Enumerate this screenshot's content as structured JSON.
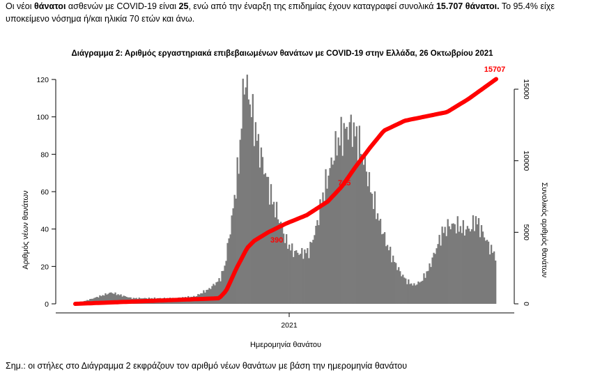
{
  "intro": {
    "p1": "Οι νέοι ",
    "b1": "θάνατοι",
    "p2": " ασθενών με COVID-19 είναι ",
    "b2": "25",
    "p3": ", ενώ από την έναρξη της επιδημίας έχουν καταγραφεί συνολικά ",
    "b3": "15.707 θάνατοι.",
    "p4": " Το 95.4% είχε υποκείμενο νόσημα ή/και ηλικία 70 ετών και άνω."
  },
  "note": "Σημ.: οι στήλες στο Διάγραμμα 2 εκφράζουν τον αριθμό νέων θανάτων με βάση την ημερομηνία θανάτου",
  "chart_data": {
    "type": "bar",
    "title": "Διάγραμμα 2: Αριθμός εργαστηριακά επιβεβαιωμένων θανάτων με COVID-19 στην Ελλάδα, 26 Οκτωβρίου 2021",
    "xlabel": "Ημερομηνία θανάτου",
    "ylabel": "Αριθμός νέων θανάτων",
    "y2label": "Συνολικός αριθμός θανάτων",
    "ylim": [
      0,
      125
    ],
    "y2lim": [
      0,
      15707
    ],
    "yticks": [
      0,
      20,
      40,
      60,
      80,
      100,
      120
    ],
    "y2ticks": [
      0,
      5000,
      10000,
      15000
    ],
    "y2ticklabels": [
      "0",
      "5000",
      "10000",
      "15000"
    ],
    "xticks": [
      "2021"
    ],
    "colors": {
      "bars": "#7a7a7a",
      "cumulative": "#ff0000"
    },
    "annotations": [
      "390",
      "715",
      "15707"
    ],
    "series": [
      {
        "type": "bar",
        "daily_profile_keypoints": [
          [
            0,
            0
          ],
          [
            25,
            3
          ],
          [
            50,
            6
          ],
          [
            80,
            3
          ],
          [
            110,
            3
          ],
          [
            140,
            3
          ],
          [
            170,
            4
          ],
          [
            190,
            8
          ],
          [
            205,
            13
          ],
          [
            212,
            20
          ],
          [
            222,
            45
          ],
          [
            232,
            75
          ],
          [
            240,
            121
          ],
          [
            246,
            112
          ],
          [
            252,
            100
          ],
          [
            260,
            85
          ],
          [
            270,
            70
          ],
          [
            280,
            55
          ],
          [
            290,
            45
          ],
          [
            300,
            33
          ],
          [
            310,
            28
          ],
          [
            320,
            27
          ],
          [
            332,
            28
          ],
          [
            342,
            40
          ],
          [
            352,
            58
          ],
          [
            362,
            72
          ],
          [
            372,
            86
          ],
          [
            382,
            92
          ],
          [
            392,
            95
          ],
          [
            402,
            88
          ],
          [
            412,
            75
          ],
          [
            422,
            58
          ],
          [
            432,
            45
          ],
          [
            442,
            33
          ],
          [
            452,
            24
          ],
          [
            462,
            17
          ],
          [
            472,
            12
          ],
          [
            482,
            10
          ],
          [
            492,
            12
          ],
          [
            502,
            18
          ],
          [
            512,
            28
          ],
          [
            522,
            38
          ],
          [
            532,
            42
          ],
          [
            542,
            42
          ],
          [
            552,
            40
          ],
          [
            562,
            40
          ],
          [
            570,
            45
          ],
          [
            580,
            38
          ],
          [
            590,
            30
          ],
          [
            600,
            25
          ]
        ]
      },
      {
        "type": "line",
        "cumulative_keypoints": [
          [
            0,
            0
          ],
          [
            205,
            390
          ],
          [
            215,
            900
          ],
          [
            230,
            2500
          ],
          [
            245,
            3900
          ],
          [
            255,
            4400
          ],
          [
            275,
            5000
          ],
          [
            300,
            5600
          ],
          [
            330,
            6200
          ],
          [
            360,
            7150
          ],
          [
            380,
            8200
          ],
          [
            400,
            9600
          ],
          [
            420,
            10900
          ],
          [
            440,
            12100
          ],
          [
            470,
            12800
          ],
          [
            500,
            13100
          ],
          [
            530,
            13400
          ],
          [
            560,
            14300
          ],
          [
            600,
            15707
          ]
        ]
      }
    ]
  }
}
